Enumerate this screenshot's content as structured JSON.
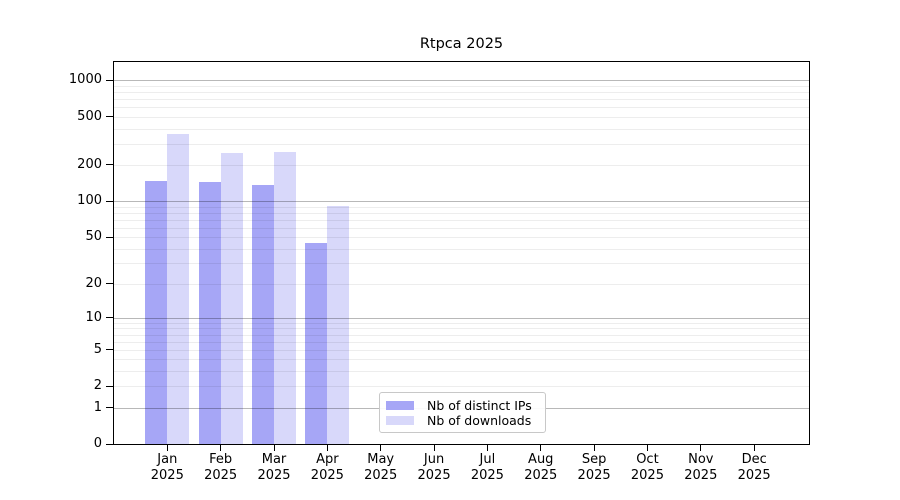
{
  "title": "Rtpca 2025",
  "chart_data": {
    "type": "bar",
    "title": "Rtpca 2025",
    "categories": [
      "Jan",
      "Feb",
      "Mar",
      "Apr",
      "May",
      "Jun",
      "Jul",
      "Aug",
      "Sep",
      "Oct",
      "Nov",
      "Dec"
    ],
    "category_year": "2025",
    "series": [
      {
        "name": "Nb of distinct IPs",
        "key": "distinct-ips",
        "color": "#a6a6f6",
        "values": [
          148,
          143,
          136,
          45,
          null,
          null,
          null,
          null,
          null,
          null,
          null,
          null
        ]
      },
      {
        "name": "Nb of downloads",
        "key": "downloads",
        "color": "#d8d8fa",
        "values": [
          364,
          249,
          258,
          91,
          null,
          null,
          null,
          null,
          null,
          null,
          null,
          null
        ]
      }
    ],
    "yscale": "log10(1+x)",
    "ylim": [
      0,
      1420
    ],
    "yticks": [
      0,
      1,
      2,
      5,
      10,
      20,
      50,
      100,
      200,
      500,
      1000
    ],
    "major_gridlines": [
      1,
      10,
      100,
      1000
    ],
    "grid": true,
    "legend_position": "inside-bottom-center"
  }
}
